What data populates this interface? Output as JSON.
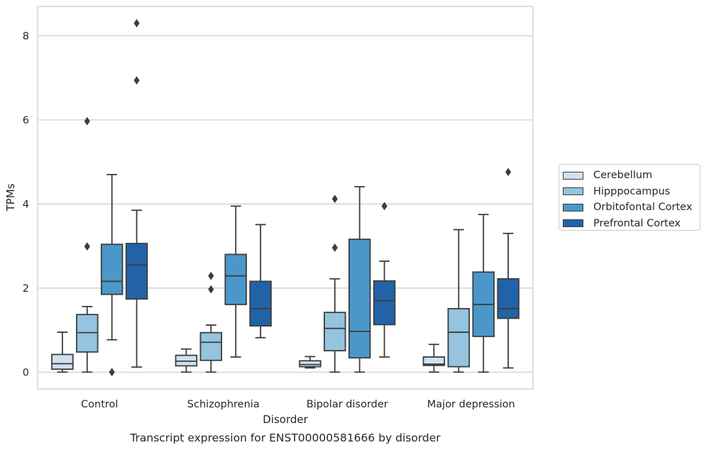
{
  "chart_data": {
    "type": "boxplot",
    "caption": "Transcript expression for ENST00000581666 by disorder",
    "xlabel": "Disorder",
    "ylabel": "TPMs",
    "ylim": [
      -0.4,
      8.7
    ],
    "yticks": [
      0,
      2,
      4,
      6,
      8
    ],
    "grid": "horizontal",
    "legend_position": "right",
    "categories": [
      "Control",
      "Schizophrenia",
      "Bipolar disorder",
      "Major depression"
    ],
    "series": [
      {
        "name": "Cerebellum",
        "color": "#d0e1f2",
        "boxes": [
          {
            "whislo": 0.0,
            "q1": 0.07,
            "med": 0.2,
            "q3": 0.42,
            "whishi": 0.95,
            "fliers": []
          },
          {
            "whislo": 0.0,
            "q1": 0.15,
            "med": 0.26,
            "q3": 0.4,
            "whishi": 0.55,
            "fliers": []
          },
          {
            "whislo": 0.1,
            "q1": 0.13,
            "med": 0.18,
            "q3": 0.27,
            "whishi": 0.37,
            "fliers": []
          },
          {
            "whislo": 0.0,
            "q1": 0.16,
            "med": 0.19,
            "q3": 0.36,
            "whishi": 0.66,
            "fliers": []
          }
        ]
      },
      {
        "name": "Hipppocampus",
        "color": "#94c4df",
        "boxes": [
          {
            "whislo": 0.0,
            "q1": 0.48,
            "med": 0.94,
            "q3": 1.37,
            "whishi": 1.56,
            "fliers": [
              2.99,
              5.97
            ]
          },
          {
            "whislo": 0.0,
            "q1": 0.28,
            "med": 0.71,
            "q3": 0.94,
            "whishi": 1.12,
            "fliers": [
              1.97,
              2.29
            ]
          },
          {
            "whislo": 0.0,
            "q1": 0.51,
            "med": 1.04,
            "q3": 1.42,
            "whishi": 2.22,
            "fliers": [
              2.96,
              4.12
            ]
          },
          {
            "whislo": 0.0,
            "q1": 0.13,
            "med": 0.95,
            "q3": 1.51,
            "whishi": 3.39,
            "fliers": []
          }
        ]
      },
      {
        "name": "Orbitofontal Cortex",
        "color": "#4a98c9",
        "boxes": [
          {
            "whislo": 0.77,
            "q1": 1.85,
            "med": 2.16,
            "q3": 3.04,
            "whishi": 4.7,
            "fliers": [
              0.0
            ]
          },
          {
            "whislo": 0.36,
            "q1": 1.61,
            "med": 2.29,
            "q3": 2.8,
            "whishi": 3.95,
            "fliers": []
          },
          {
            "whislo": 0.0,
            "q1": 0.34,
            "med": 0.97,
            "q3": 3.16,
            "whishi": 4.41,
            "fliers": []
          },
          {
            "whislo": 0.0,
            "q1": 0.85,
            "med": 1.61,
            "q3": 2.38,
            "whishi": 3.75,
            "fliers": []
          }
        ]
      },
      {
        "name": "Prefrontal Cortex",
        "color": "#2263a8",
        "boxes": [
          {
            "whislo": 0.12,
            "q1": 1.74,
            "med": 2.55,
            "q3": 3.06,
            "whishi": 3.85,
            "fliers": [
              6.94,
              8.3
            ]
          },
          {
            "whislo": 0.82,
            "q1": 1.1,
            "med": 1.51,
            "q3": 2.16,
            "whishi": 3.51,
            "fliers": []
          },
          {
            "whislo": 0.36,
            "q1": 1.13,
            "med": 1.7,
            "q3": 2.17,
            "whishi": 2.64,
            "fliers": [
              3.95
            ]
          },
          {
            "whislo": 0.1,
            "q1": 1.28,
            "med": 1.51,
            "q3": 2.22,
            "whishi": 3.3,
            "fliers": [
              4.76
            ]
          }
        ]
      }
    ]
  }
}
